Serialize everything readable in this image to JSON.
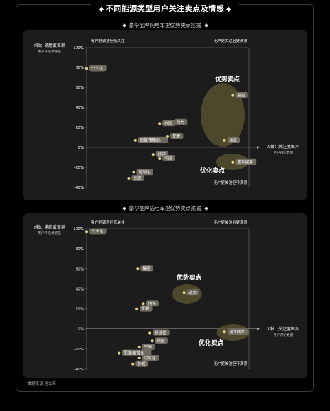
{
  "title": "不同能源类型用户关注卖点及情感",
  "source_note": "*数据来源:懂车帝",
  "colors": {
    "background": "#000000",
    "panel": "#1c1c1c",
    "point": "#e8d28a",
    "label_bg": "#6e6a60",
    "highlight": "#5a5230"
  },
  "chart_data": [
    {
      "type": "scatter",
      "title": "豪华品牌纯电车型优势卖点挖掘",
      "ylabel": "Y轴：满意度差异",
      "ylabel_sub": "用户评论情感值",
      "xlabel": "X轴：关注度差异",
      "xlabel_sub": "用户评论数量",
      "ylim": [
        -40,
        100
      ],
      "yticks": [
        "100%",
        "80%",
        "60%",
        "40%",
        "20%",
        "0%",
        "-20%",
        "-40%"
      ],
      "quadrant_labels": {
        "top_left": "用户更满意但低关注",
        "top_right": "用户更关注且更满意",
        "bottom_right": "用户更关注但不满意"
      },
      "cluster_labels": {
        "advantage": "优势卖点",
        "optimize": "优化卖点"
      },
      "points": [
        {
          "label": "个性化",
          "x": -100,
          "y": 79
        },
        {
          "label": "操控",
          "x": 80,
          "y": 52
        },
        {
          "label": "动力",
          "x": 5,
          "y": 25
        },
        {
          "label": "内饰",
          "x": -10,
          "y": 24
        },
        {
          "label": "配置",
          "x": 0,
          "y": 11
        },
        {
          "label": "续航",
          "x": 70,
          "y": 7
        },
        {
          "label": "配置/智能化",
          "x": -40,
          "y": 7
        },
        {
          "label": "舒适",
          "x": -18,
          "y": -7
        },
        {
          "label": "空间",
          "x": -10,
          "y": -11
        },
        {
          "label": "可靠性",
          "x": -42,
          "y": -25
        },
        {
          "label": "外观",
          "x": -48,
          "y": -31
        },
        {
          "label": "用车成本",
          "x": 80,
          "y": -15
        }
      ]
    },
    {
      "type": "scatter",
      "title": "豪华品牌插电车型优势卖点挖掘",
      "ylabel": "Y轴：满意度差异",
      "ylabel_sub": "用户评论情感值",
      "xlabel": "X轴：关注度差异",
      "xlabel_sub": "用户评论数量",
      "ylim": [
        -40,
        100
      ],
      "yticks": [
        "100%",
        "80%",
        "60%",
        "40%",
        "20%",
        "0%",
        "-20%",
        "-40%"
      ],
      "quadrant_labels": {
        "top_left": "用户更满意但低关注",
        "top_right": "用户更关注且更满意",
        "bottom_right": "用户更关注但不满意"
      },
      "cluster_labels": {
        "advantage": "优势卖点",
        "optimize": "优化卖点"
      },
      "points": [
        {
          "label": "个性化",
          "x": -100,
          "y": 97
        },
        {
          "label": "操控",
          "x": -37,
          "y": 60
        },
        {
          "label": "动力",
          "x": 20,
          "y": 36
        },
        {
          "label": "内饰",
          "x": -30,
          "y": 25
        },
        {
          "label": "配置",
          "x": -38,
          "y": 20
        },
        {
          "label": "舒适性",
          "x": -22,
          "y": -4
        },
        {
          "label": "续航",
          "x": -19,
          "y": -12
        },
        {
          "label": "用车成本",
          "x": 70,
          "y": -3
        },
        {
          "label": "空间",
          "x": -35,
          "y": -18
        },
        {
          "label": "配置/智能化",
          "x": -60,
          "y": -24
        },
        {
          "label": "可靠性",
          "x": -35,
          "y": -29
        },
        {
          "label": "外观",
          "x": -43,
          "y": -35
        }
      ]
    }
  ]
}
